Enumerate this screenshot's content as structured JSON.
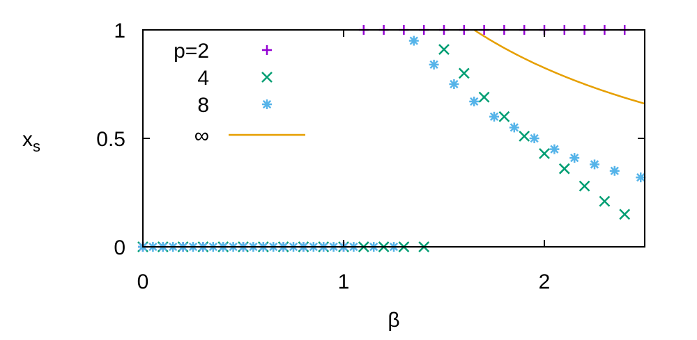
{
  "chart_data": {
    "type": "scatter",
    "title": "",
    "xlabel": "β",
    "ylabel_main": "x",
    "ylabel_sub": "s",
    "xlim": [
      0,
      2.5
    ],
    "ylim": [
      0,
      1
    ],
    "x_ticks": [
      {
        "value": 0,
        "label": "0"
      },
      {
        "value": 1,
        "label": "1"
      },
      {
        "value": 2,
        "label": "2"
      }
    ],
    "y_ticks": [
      {
        "value": 0,
        "label": "0"
      },
      {
        "value": 0.5,
        "label": "0.5"
      },
      {
        "value": 1,
        "label": "1"
      }
    ],
    "grid": false,
    "legend_position": "top-left",
    "series": [
      {
        "name": "p=2",
        "marker": "plus",
        "color": "#9400D3",
        "points": [
          [
            0.0,
            0
          ],
          [
            0.1,
            0
          ],
          [
            0.2,
            0
          ],
          [
            0.3,
            0
          ],
          [
            0.4,
            0
          ],
          [
            0.5,
            0
          ],
          [
            0.6,
            0
          ],
          [
            0.7,
            0
          ],
          [
            0.8,
            0
          ],
          [
            0.9,
            0
          ],
          [
            1.0,
            0
          ],
          [
            1.1,
            1
          ],
          [
            1.2,
            1
          ],
          [
            1.3,
            1
          ],
          [
            1.4,
            1
          ],
          [
            1.5,
            1
          ],
          [
            1.6,
            1
          ],
          [
            1.7,
            1
          ],
          [
            1.8,
            1
          ],
          [
            1.9,
            1
          ],
          [
            2.0,
            1
          ],
          [
            2.1,
            1
          ],
          [
            2.2,
            1
          ],
          [
            2.3,
            1
          ],
          [
            2.4,
            1
          ]
        ]
      },
      {
        "name": "4",
        "marker": "cross",
        "color": "#009E73",
        "points": [
          [
            0.0,
            0
          ],
          [
            0.1,
            0
          ],
          [
            0.2,
            0
          ],
          [
            0.3,
            0
          ],
          [
            0.4,
            0
          ],
          [
            0.5,
            0
          ],
          [
            0.6,
            0
          ],
          [
            0.7,
            0
          ],
          [
            0.8,
            0
          ],
          [
            0.9,
            0
          ],
          [
            1.0,
            0
          ],
          [
            1.1,
            0
          ],
          [
            1.2,
            0
          ],
          [
            1.3,
            0
          ],
          [
            1.4,
            0
          ],
          [
            1.5,
            0.91
          ],
          [
            1.6,
            0.8
          ],
          [
            1.7,
            0.69
          ],
          [
            1.8,
            0.6
          ],
          [
            1.9,
            0.51
          ],
          [
            2.0,
            0.43
          ],
          [
            2.1,
            0.36
          ],
          [
            2.2,
            0.28
          ],
          [
            2.3,
            0.21
          ],
          [
            2.4,
            0.15
          ]
        ]
      },
      {
        "name": "8",
        "marker": "star",
        "color": "#56B4E9",
        "points": [
          [
            0.0,
            0
          ],
          [
            0.05,
            0
          ],
          [
            0.1,
            0
          ],
          [
            0.15,
            0
          ],
          [
            0.2,
            0
          ],
          [
            0.25,
            0
          ],
          [
            0.3,
            0
          ],
          [
            0.35,
            0
          ],
          [
            0.4,
            0
          ],
          [
            0.45,
            0
          ],
          [
            0.5,
            0
          ],
          [
            0.55,
            0
          ],
          [
            0.6,
            0
          ],
          [
            0.65,
            0
          ],
          [
            0.7,
            0
          ],
          [
            0.75,
            0
          ],
          [
            0.8,
            0
          ],
          [
            0.85,
            0
          ],
          [
            0.9,
            0
          ],
          [
            0.95,
            0
          ],
          [
            1.0,
            0
          ],
          [
            1.05,
            0
          ],
          [
            1.15,
            0
          ],
          [
            1.25,
            0
          ],
          [
            1.35,
            0.95
          ],
          [
            1.45,
            0.84
          ],
          [
            1.55,
            0.75
          ],
          [
            1.65,
            0.67
          ],
          [
            1.75,
            0.6
          ],
          [
            1.85,
            0.55
          ],
          [
            1.95,
            0.5
          ],
          [
            2.05,
            0.45
          ],
          [
            2.15,
            0.41
          ],
          [
            2.25,
            0.38
          ],
          [
            2.35,
            0.35
          ],
          [
            2.48,
            0.32
          ]
        ]
      },
      {
        "name": "∞",
        "marker": "line",
        "color": "#E69F00",
        "curve": "min(1, 1.65/β)",
        "beta_range": [
          1.65,
          2.5
        ]
      }
    ]
  }
}
